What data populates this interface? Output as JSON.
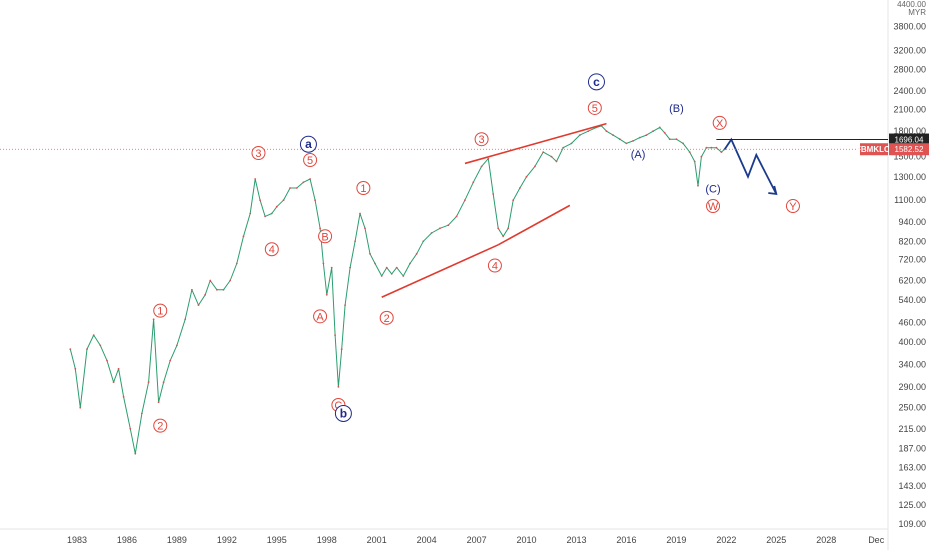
{
  "chart_data": {
    "type": "line",
    "symbol": "FBMKLCI",
    "currency": "MYR",
    "price_axis_scale": "log",
    "grid": false,
    "x_ticks": [
      "1983",
      "1986",
      "1989",
      "1992",
      "1995",
      "1998",
      "2001",
      "2004",
      "2007",
      "2010",
      "2013",
      "2016",
      "2019",
      "2022",
      "2025",
      "2028",
      "Dec"
    ],
    "y_ticks": [
      4400,
      3800,
      3200,
      2800,
      2400,
      2100,
      1800,
      1500,
      1300,
      1100,
      940,
      820,
      720,
      620,
      540,
      460,
      400,
      340,
      290,
      250,
      215,
      187,
      163,
      143,
      125,
      109
    ],
    "y_tick_labels": [
      "4400.00",
      "3800.00",
      "3200.00",
      "2800.00",
      "2400.00",
      "2100.00",
      "1800.00",
      "1500.00",
      "1300.00",
      "1100.00",
      "940.00",
      "820.00",
      "720.00",
      "620.00",
      "540.00",
      "460.00",
      "400.00",
      "340.00",
      "290.00",
      "250.00",
      "215.00",
      "187.00",
      "163.00",
      "143.00",
      "125.00",
      "109.00"
    ],
    "price_labels": {
      "resistance": {
        "value": 1696.04,
        "label": "1696.04"
      },
      "current": {
        "value": 1582.52,
        "label": "1582.52",
        "symbol": "FBMKLCI"
      }
    },
    "series": [
      {
        "x": [
          1982.6,
          1982.9,
          1983.2,
          1983.6,
          1984.0,
          1984.4,
          1984.8,
          1985.2,
          1985.5,
          1985.8,
          1986.2,
          1986.5,
          1986.9,
          1987.3,
          1987.6,
          1987.9,
          1988.2,
          1988.6,
          1989.0,
          1989.5,
          1989.9,
          1990.3,
          1990.7,
          1991.0,
          1991.4,
          1991.8,
          1992.2,
          1992.6,
          1993.0,
          1993.4,
          1993.7,
          1994.0,
          1994.3,
          1994.7,
          1995.0,
          1995.4,
          1995.8,
          1996.2,
          1996.6,
          1997.0,
          1997.3,
          1997.6,
          1997.8,
          1998.0,
          1998.3,
          1998.5,
          1998.7,
          1998.9,
          1999.1,
          1999.4,
          1999.7,
          2000.0,
          2000.3,
          2000.6,
          2000.9,
          2001.3,
          2001.6,
          2001.9,
          2002.2,
          2002.6,
          2003.0,
          2003.4,
          2003.8,
          2004.3,
          2004.8,
          2005.3,
          2005.8,
          2006.3,
          2006.8,
          2007.3,
          2007.7,
          2008.0,
          2008.3,
          2008.6,
          2008.9,
          2009.2,
          2009.6,
          2010.0,
          2010.5,
          2011.0,
          2011.5,
          2011.8,
          2012.2,
          2012.7,
          2013.2,
          2013.7,
          2014.2,
          2014.5,
          2014.8,
          2015.2,
          2015.6,
          2016.0,
          2016.4,
          2016.8,
          2017.2,
          2017.6,
          2018.0,
          2018.3,
          2018.6,
          2019.0,
          2019.4,
          2019.8,
          2020.1,
          2020.3,
          2020.5,
          2020.8,
          2021.1,
          2021.4,
          2021.7,
          2021.9
        ],
        "y": [
          380,
          330,
          250,
          380,
          420,
          390,
          350,
          300,
          330,
          270,
          215,
          180,
          240,
          300,
          470,
          260,
          300,
          350,
          390,
          470,
          580,
          520,
          560,
          620,
          580,
          580,
          620,
          700,
          850,
          1000,
          1280,
          1100,
          980,
          1000,
          1050,
          1100,
          1200,
          1200,
          1250,
          1280,
          1100,
          900,
          700,
          560,
          680,
          420,
          290,
          380,
          520,
          680,
          820,
          1000,
          900,
          750,
          700,
          640,
          680,
          650,
          680,
          640,
          700,
          750,
          820,
          870,
          900,
          920,
          980,
          1100,
          1250,
          1400,
          1480,
          1150,
          900,
          850,
          900,
          1100,
          1200,
          1300,
          1400,
          1550,
          1500,
          1450,
          1600,
          1650,
          1750,
          1800,
          1850,
          1870,
          1800,
          1750,
          1700,
          1650,
          1680,
          1720,
          1750,
          1800,
          1850,
          1780,
          1700,
          1700,
          1650,
          1550,
          1450,
          1220,
          1500,
          1600,
          1600,
          1600,
          1550,
          1582
        ]
      }
    ],
    "projection": {
      "x": [
        2021.9,
        2022.3,
        2023.3,
        2023.8,
        2025.0
      ],
      "y": [
        1582,
        1696,
        1300,
        1520,
        1150
      ]
    },
    "trendlines": [
      {
        "x": [
          2001.3,
          2008.3
        ],
        "y": [
          550,
          800
        ]
      },
      {
        "x": [
          2006.3,
          2014.8
        ],
        "y": [
          1430,
          1900
        ]
      },
      {
        "x": [
          2008.3,
          2012.6
        ],
        "y": [
          800,
          1060
        ]
      }
    ],
    "wave_labels": [
      {
        "text": "1",
        "x": 1988.0,
        "y": 500,
        "style": "red-circle"
      },
      {
        "text": "2",
        "x": 1988.0,
        "y": 220,
        "style": "red-circle"
      },
      {
        "text": "3",
        "x": 1993.9,
        "y": 1540,
        "style": "red-circle"
      },
      {
        "text": "4",
        "x": 1994.7,
        "y": 775,
        "style": "red-circle"
      },
      {
        "text": "5",
        "x": 1997.0,
        "y": 1465,
        "style": "red-circle"
      },
      {
        "text": "a",
        "x": 1996.9,
        "y": 1640,
        "style": "blue-circle"
      },
      {
        "text": "B",
        "x": 1997.9,
        "y": 850,
        "style": "red-circle"
      },
      {
        "text": "A",
        "x": 1997.6,
        "y": 480,
        "style": "red-circle"
      },
      {
        "text": "C",
        "x": 1998.7,
        "y": 255,
        "style": "red-circle"
      },
      {
        "text": "b",
        "x": 1999.0,
        "y": 240,
        "style": "blue-circle"
      },
      {
        "text": "1",
        "x": 2000.2,
        "y": 1200,
        "style": "red-circle"
      },
      {
        "text": "2",
        "x": 2001.6,
        "y": 475,
        "style": "red-circle"
      },
      {
        "text": "3",
        "x": 2007.3,
        "y": 1700,
        "style": "red-circle"
      },
      {
        "text": "4",
        "x": 2008.1,
        "y": 690,
        "style": "red-circle"
      },
      {
        "text": "5",
        "x": 2014.1,
        "y": 2125,
        "style": "red-circle"
      },
      {
        "text": "c",
        "x": 2014.2,
        "y": 2560,
        "style": "blue-circle"
      },
      {
        "text": "(A)",
        "x": 2016.7,
        "y": 1530,
        "style": "blue-text"
      },
      {
        "text": "(B)",
        "x": 2019.0,
        "y": 2125,
        "style": "blue-text"
      },
      {
        "text": "X",
        "x": 2021.6,
        "y": 1910,
        "style": "red-circle"
      },
      {
        "text": "(C)",
        "x": 2021.2,
        "y": 1195,
        "style": "blue-text"
      },
      {
        "text": "W",
        "x": 2021.2,
        "y": 1055,
        "style": "red-circle"
      },
      {
        "text": "Y",
        "x": 2026.0,
        "y": 1055,
        "style": "red-circle"
      }
    ]
  }
}
